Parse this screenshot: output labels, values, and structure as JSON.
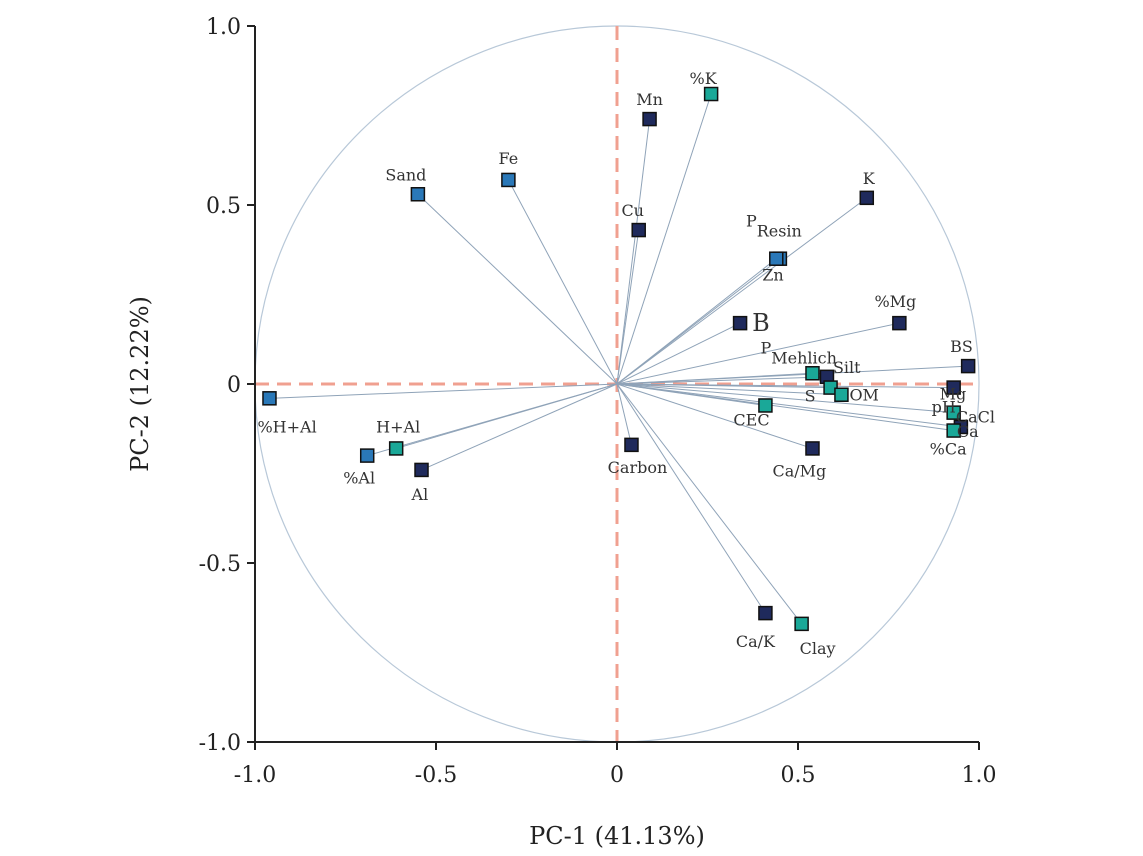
{
  "chart_data": {
    "type": "scatter",
    "xlabel": "PC-1 (41.13%)",
    "ylabel": "PC-2 (12.22%)",
    "xlim": [
      -1.0,
      1.0
    ],
    "ylim": [
      -1.0,
      1.0
    ],
    "x_ticks": [
      "-1.0",
      "-0.5",
      "0",
      "0.5",
      "1.0"
    ],
    "y_ticks": [
      "1.0",
      "0.5",
      "0",
      "-0.5",
      "-1.0"
    ],
    "unit_circle": true,
    "reference_lines": {
      "x": 0,
      "y": 0,
      "color": "#f0a090"
    },
    "colors": {
      "dark": "#1f2a5c",
      "mid": "#2a78b8",
      "teal": "#1aa898",
      "line": "#8fa3b8",
      "circle": "#b8c8d8"
    },
    "points": [
      {
        "label": "%K",
        "x": 0.26,
        "y": 0.81,
        "color": "teal"
      },
      {
        "label": "Mn",
        "x": 0.09,
        "y": 0.74,
        "color": "dark"
      },
      {
        "label": "Fe",
        "x": -0.3,
        "y": 0.57,
        "color": "mid"
      },
      {
        "label": "Sand",
        "x": -0.55,
        "y": 0.53,
        "color": "mid"
      },
      {
        "label": "K",
        "x": 0.69,
        "y": 0.52,
        "color": "dark"
      },
      {
        "label": "Cu",
        "x": 0.06,
        "y": 0.43,
        "color": "dark"
      },
      {
        "label": "P",
        "sub": "Resin",
        "x": 0.45,
        "y": 0.35,
        "color": "mid"
      },
      {
        "label": "Zn",
        "x": 0.44,
        "y": 0.35,
        "color": "mid"
      },
      {
        "label": "B",
        "x": 0.34,
        "y": 0.17,
        "color": "dark"
      },
      {
        "label": "%Mg",
        "x": 0.78,
        "y": 0.17,
        "color": "dark"
      },
      {
        "label": "P",
        "sub": "Mehlich",
        "x": 0.54,
        "y": 0.03,
        "color": "teal"
      },
      {
        "label": "Silt",
        "x": 0.58,
        "y": 0.02,
        "color": "dark"
      },
      {
        "label": "S",
        "x": 0.59,
        "y": -0.01,
        "color": "teal"
      },
      {
        "label": "OM",
        "x": 0.62,
        "y": -0.03,
        "color": "teal"
      },
      {
        "label": "BS",
        "x": 0.97,
        "y": 0.05,
        "color": "dark"
      },
      {
        "label": "Mg",
        "x": 0.93,
        "y": -0.01,
        "color": "dark"
      },
      {
        "label": "pH",
        "sub": "CaCl",
        "x": 0.93,
        "y": -0.08,
        "color": "teal"
      },
      {
        "label": "Ca",
        "x": 0.95,
        "y": -0.12,
        "color": "dark"
      },
      {
        "label": "%Ca",
        "x": 0.93,
        "y": -0.13,
        "color": "teal"
      },
      {
        "label": "CEC",
        "x": 0.41,
        "y": -0.06,
        "color": "teal"
      },
      {
        "label": "Ca/Mg",
        "x": 0.54,
        "y": -0.18,
        "color": "dark"
      },
      {
        "label": "Carbon",
        "x": 0.04,
        "y": -0.17,
        "color": "dark"
      },
      {
        "label": "Ca/K",
        "x": 0.41,
        "y": -0.64,
        "color": "dark"
      },
      {
        "label": "Clay",
        "x": 0.51,
        "y": -0.67,
        "color": "teal"
      },
      {
        "label": "%H+Al",
        "x": -0.96,
        "y": -0.04,
        "color": "mid"
      },
      {
        "label": "H+Al",
        "x": -0.61,
        "y": -0.18,
        "color": "teal"
      },
      {
        "label": "%Al",
        "x": -0.69,
        "y": -0.2,
        "color": "mid"
      },
      {
        "label": "Al",
        "x": -0.54,
        "y": -0.24,
        "color": "dark"
      }
    ]
  }
}
